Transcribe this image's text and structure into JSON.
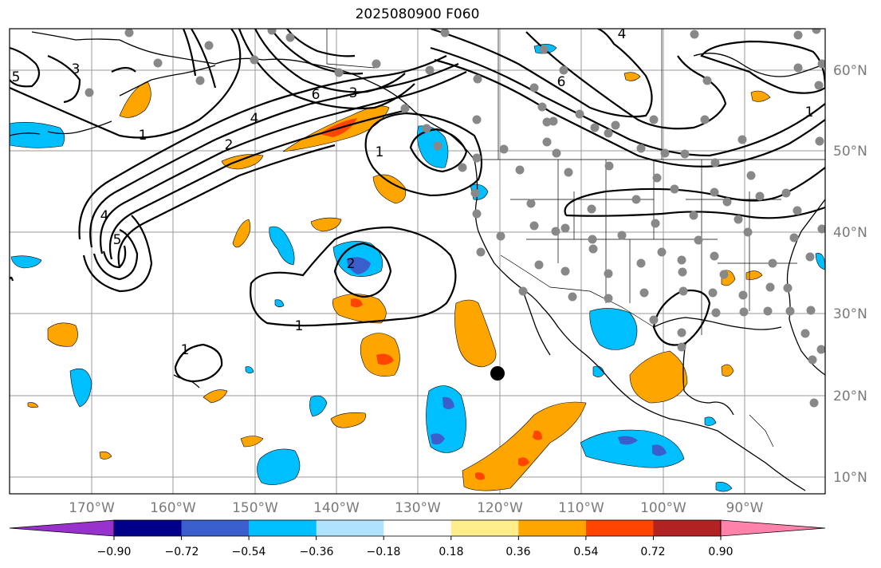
{
  "title": "2025080900 F060",
  "lat_labels": [
    "60°N",
    "50°N",
    "40°N",
    "30°N",
    "20°N",
    "10°N"
  ],
  "lon_labels": [
    "170°W",
    "160°W",
    "150°W",
    "140°W",
    "130°W",
    "120°W",
    "110°W",
    "100°W",
    "90°W"
  ],
  "colorbar": {
    "colors": [
      "#9932cc",
      "#00008b",
      "#3a5fcd",
      "#00bfff",
      "#b0e2ff",
      "#ffffff",
      "#ffec8b",
      "#ffa500",
      "#ff4500",
      "#b22222",
      "#ff82ab"
    ],
    "tick_labels": [
      "−0.90",
      "−0.72",
      "−0.54",
      "−0.36",
      "−0.18",
      "0.18",
      "0.36",
      "0.54",
      "0.72",
      "0.90"
    ]
  },
  "contour_labels": [
    "1",
    "2",
    "4",
    "6",
    "3",
    "5",
    "1",
    "2",
    "1",
    "4",
    "6",
    "3",
    "4",
    "5",
    "1",
    "1"
  ],
  "colors": {
    "negative": "#00bfff",
    "positive": "#ffa500",
    "station": "#888888",
    "marker": "#000000"
  }
}
